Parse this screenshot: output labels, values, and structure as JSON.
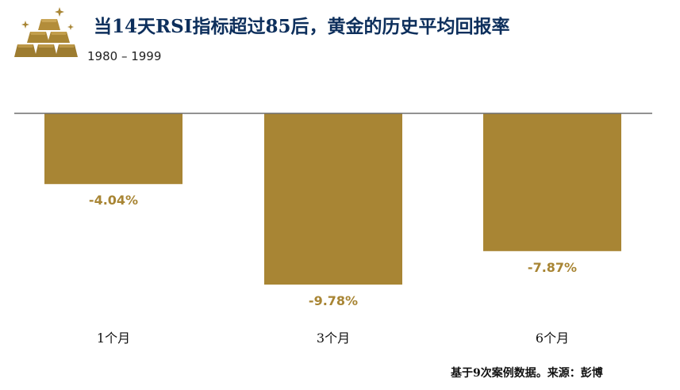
{
  "header": {
    "title": "当14天RSI指标超过85后，黄金的历史平均回报率",
    "subtitle": "1980 – 1999"
  },
  "footer": {
    "source": "基于9次案例数据。来源：彭博"
  },
  "colors": {
    "bar": "#a88534",
    "label": "#a88534",
    "title": "#0d2f5c",
    "axis": "#6e6e6e"
  },
  "logo": {
    "icon": "gold-bars-icon"
  },
  "chart_data": {
    "type": "bar",
    "categories": [
      "1个月",
      "3个月",
      "6个月"
    ],
    "values": [
      -4.04,
      -9.78,
      -7.87
    ],
    "value_labels": [
      "-4.04%",
      "-9.78%",
      "-7.87%"
    ],
    "title": "当14天RSI指标超过85后，黄金的历史平均回报率",
    "xlabel": "",
    "ylabel": "",
    "ylim": [
      -10,
      0
    ],
    "grid": false,
    "legend": "none"
  }
}
